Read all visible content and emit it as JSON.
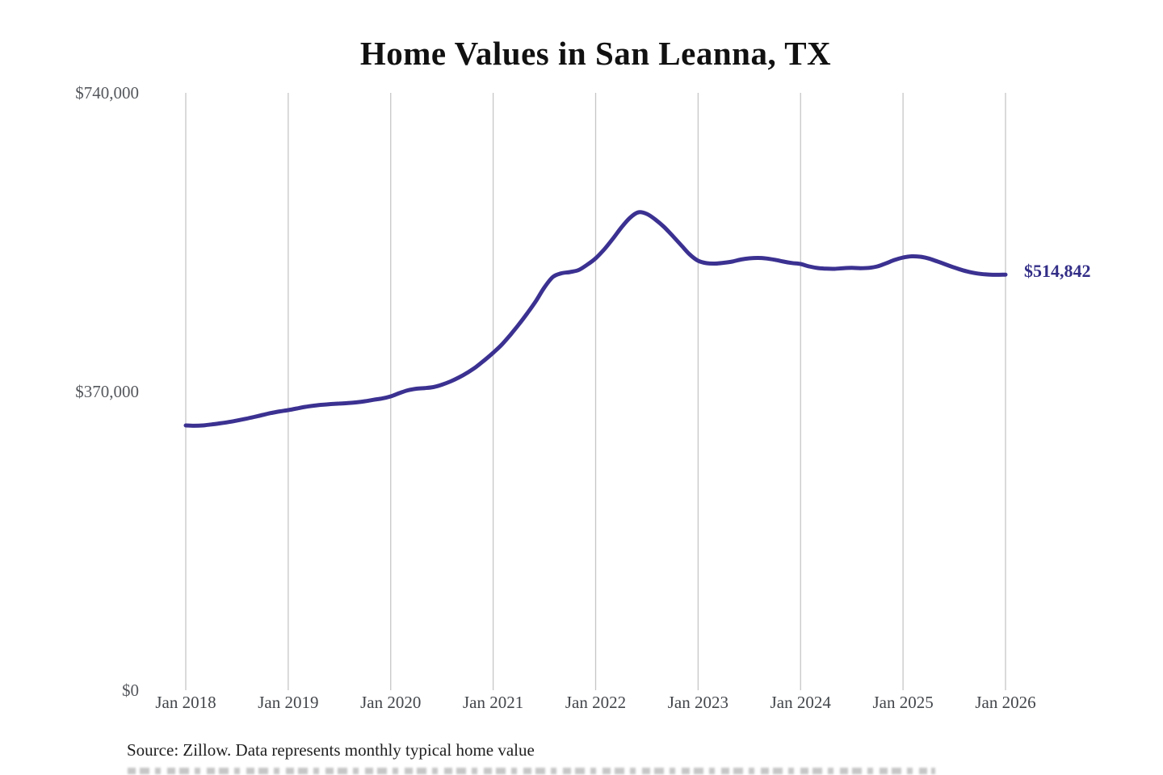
{
  "chart": {
    "title": "Home Values in San Leanna, TX",
    "end_label": "$514,842",
    "source": "Source: Zillow. Data represents monthly typical home value",
    "colors": {
      "line": "#3b3191",
      "end_label": "#332e87",
      "gridline": "#c6c6c6",
      "y_tick": "#54575c",
      "x_tick": "#43464b",
      "title": "#111111",
      "source": "#1f1f1f",
      "background": "#ffffff"
    }
  },
  "chart_data": {
    "type": "line",
    "title": "Home Values in San Leanna, TX",
    "xlabel": "",
    "ylabel": "",
    "ylim": [
      0,
      740000
    ],
    "y_ticks": [
      0,
      370000,
      740000
    ],
    "y_tick_labels": [
      "$0",
      "$370,000",
      "$740,000"
    ],
    "x_tick_labels": [
      "Jan 2018",
      "Jan 2019",
      "Jan 2020",
      "Jan 2021",
      "Jan 2022",
      "Jan 2023",
      "Jan 2024",
      "Jan 2025",
      "Jan 2026"
    ],
    "x_range": [
      "Jan 2018",
      "Jan 2026"
    ],
    "frequency": "monthly",
    "grid": "vertical-only",
    "legend": "none",
    "annotation": "$514,842",
    "end_value": 514842,
    "series": [
      {
        "name": "Typical home value",
        "values": [
          328000,
          327600,
          328000,
          329200,
          330600,
          332200,
          334100,
          336200,
          338500,
          341000,
          343400,
          345400,
          347000,
          349000,
          351000,
          352500,
          353600,
          354500,
          355100,
          355700,
          356600,
          358000,
          359800,
          361400,
          364000,
          368000,
          371500,
          373500,
          374300,
          375500,
          378500,
          382500,
          387500,
          393500,
          400500,
          409000,
          418000,
          428000,
          440000,
          453000,
          467000,
          482000,
          499000,
          512000,
          516500,
          518000,
          520500,
          527000,
          535000,
          546000,
          559000,
          573000,
          585000,
          592000,
          590000,
          583000,
          574000,
          563000,
          551500,
          540000,
          532000,
          529000,
          528500,
          529500,
          531000,
          533500,
          535000,
          535500,
          534800,
          533200,
          531000,
          529200,
          528000,
          525000,
          523000,
          522200,
          522000,
          522800,
          523200,
          522800,
          523200,
          525000,
          528800,
          533000,
          536000,
          537500,
          537000,
          534800,
          531200,
          527400,
          523600,
          520200,
          517600,
          515800,
          514900,
          514600,
          514842
        ]
      }
    ]
  }
}
